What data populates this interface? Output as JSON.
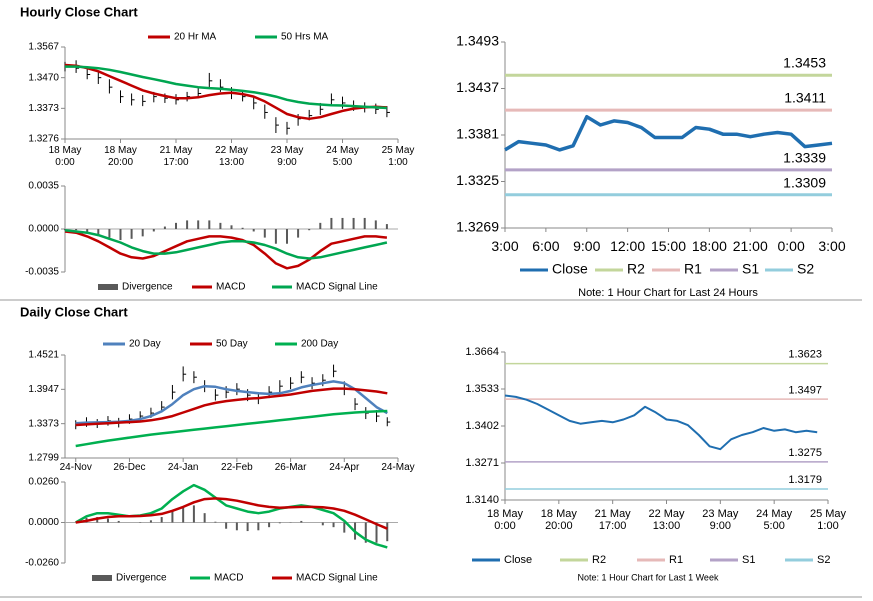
{
  "headings": [
    "Hourly Close Chart",
    "Daily Close Chart"
  ],
  "chart_data": [
    {
      "type": "hlc",
      "x": [
        0,
        1,
        2,
        3,
        4,
        5,
        6,
        7,
        8,
        9,
        10,
        11,
        12,
        13,
        14,
        15,
        16,
        17,
        18,
        19,
        20,
        21,
        22,
        23,
        24,
        25,
        26,
        27,
        28,
        29
      ],
      "high": [
        1.352,
        1.3525,
        1.35,
        1.349,
        1.3465,
        1.343,
        1.342,
        1.3415,
        1.3425,
        1.342,
        1.3418,
        1.3425,
        1.344,
        1.3485,
        1.3465,
        1.344,
        1.3425,
        1.341,
        1.3385,
        1.3345,
        1.333,
        1.3355,
        1.3368,
        1.339,
        1.342,
        1.341,
        1.3398,
        1.3392,
        1.3388,
        1.338
      ],
      "low": [
        1.349,
        1.3485,
        1.3465,
        1.345,
        1.342,
        1.339,
        1.3382,
        1.338,
        1.3392,
        1.339,
        1.3385,
        1.3395,
        1.3405,
        1.344,
        1.3425,
        1.3402,
        1.3395,
        1.337,
        1.334,
        1.3295,
        1.329,
        1.3318,
        1.3335,
        1.3352,
        1.338,
        1.3372,
        1.3365,
        1.336,
        1.3355,
        1.3345
      ],
      "close": [
        1.3505,
        1.35,
        1.348,
        1.347,
        1.344,
        1.341,
        1.34,
        1.3395,
        1.341,
        1.3405,
        1.34,
        1.341,
        1.342,
        1.346,
        1.344,
        1.342,
        1.341,
        1.339,
        1.336,
        1.332,
        1.331,
        1.334,
        1.335,
        1.337,
        1.34,
        1.339,
        1.338,
        1.3375,
        1.337,
        1.336
      ],
      "series": [
        {
          "name": "20 Hr MA",
          "color": "#c00000",
          "values": [
            1.351,
            1.3508,
            1.35,
            1.349,
            1.3475,
            1.346,
            1.3445,
            1.343,
            1.342,
            1.3412,
            1.3405,
            1.3405,
            1.3408,
            1.3415,
            1.342,
            1.3422,
            1.3418,
            1.341,
            1.3395,
            1.3375,
            1.3355,
            1.3345,
            1.334,
            1.3345,
            1.3355,
            1.3365,
            1.3372,
            1.3376,
            1.3378,
            1.3376
          ]
        },
        {
          "name": "50 Hrs MA",
          "color": "#00a651",
          "values": [
            1.3505,
            1.3505,
            1.3503,
            1.35,
            1.3495,
            1.3488,
            1.348,
            1.3472,
            1.3465,
            1.3458,
            1.345,
            1.3445,
            1.344,
            1.3437,
            1.3435,
            1.3432,
            1.3428,
            1.3424,
            1.3418,
            1.341,
            1.34,
            1.3393,
            1.3388,
            1.3385,
            1.3383,
            1.3382,
            1.338,
            1.3378,
            1.3376,
            1.3374
          ]
        }
      ],
      "xlim": [
        0,
        30
      ],
      "xticks": [
        {
          "value": 0,
          "label": "18 May 0:00"
        },
        {
          "value": 5,
          "label": "18 May 20:00"
        },
        {
          "value": 10,
          "label": "21 May 17:00"
        },
        {
          "value": 15,
          "label": "22 May 13:00"
        },
        {
          "value": 20,
          "label": "23 May 9:00"
        },
        {
          "value": 25,
          "label": "24 May 5:00"
        },
        {
          "value": 30,
          "label": "25 May 1:00"
        }
      ],
      "ylim": [
        1.3276,
        1.3567
      ],
      "yticks": [
        1.3567,
        {
          "value": 1.347,
          "label": "1.3470"
        },
        1.3373,
        1.3276
      ]
    },
    {
      "type": "macd",
      "x": [
        0,
        1,
        2,
        3,
        4,
        5,
        6,
        7,
        8,
        9,
        10,
        11,
        12,
        13,
        14,
        15,
        16,
        17,
        18,
        19,
        20,
        21,
        22,
        23,
        24,
        25,
        26,
        27,
        28,
        29
      ],
      "series": [
        {
          "name": "Divergence",
          "color": "#595959",
          "style": "bar",
          "values": [
            -0.0001,
            -0.0001,
            -0.0003,
            -0.0005,
            -0.0007,
            -0.0009,
            -0.0008,
            -0.0006,
            -0.0002,
            0.0002,
            0.0005,
            0.0007,
            0.0007,
            0.0007,
            0.0005,
            0.0003,
            0.0001,
            -0.0002,
            -0.0007,
            -0.0012,
            -0.0012,
            -0.0007,
            -0.0001,
            0.0005,
            0.0009,
            0.0009,
            0.0009,
            0.0009,
            0.0007,
            0.0004
          ]
        },
        {
          "name": "MACD",
          "color": "#c00000",
          "values": [
            -0.0002,
            -0.0003,
            -0.0006,
            -0.001,
            -0.0015,
            -0.002,
            -0.0023,
            -0.0024,
            -0.0022,
            -0.0018,
            -0.0014,
            -0.001,
            -0.0008,
            -0.0006,
            -0.0006,
            -0.0007,
            -0.0009,
            -0.0013,
            -0.002,
            -0.0028,
            -0.0032,
            -0.003,
            -0.0025,
            -0.0018,
            -0.0012,
            -0.001,
            -0.0008,
            -0.0006,
            -0.0006,
            -0.0007
          ]
        },
        {
          "name": "MACD Signal Line",
          "color": "#00a651",
          "values": [
            -0.0001,
            -0.0002,
            -0.0003,
            -0.0005,
            -0.0008,
            -0.0011,
            -0.0015,
            -0.0018,
            -0.002,
            -0.002,
            -0.0019,
            -0.0017,
            -0.0015,
            -0.0013,
            -0.0011,
            -0.001,
            -0.001,
            -0.0011,
            -0.0013,
            -0.0016,
            -0.002,
            -0.0023,
            -0.0024,
            -0.0023,
            -0.0021,
            -0.0019,
            -0.0017,
            -0.0015,
            -0.0013,
            -0.0011
          ]
        }
      ],
      "xlim": [
        0,
        30
      ],
      "ylim": [
        -0.0035,
        0.0035
      ],
      "yticks": [
        0.0035,
        {
          "value": 0,
          "label": "0.0000"
        },
        -0.0035
      ]
    },
    {
      "type": "levels",
      "x": [
        0,
        1,
        2,
        3,
        4,
        5,
        6,
        7,
        8,
        9,
        10,
        11,
        12,
        13,
        14,
        15,
        16,
        17,
        18,
        19,
        20,
        21,
        22,
        23,
        24
      ],
      "series": [
        {
          "name": "Close",
          "color": "#1f6eb0",
          "values": [
            1.3363,
            1.3373,
            1.3371,
            1.3369,
            1.3363,
            1.3368,
            1.3403,
            1.3393,
            1.3398,
            1.3396,
            1.339,
            1.3378,
            1.3378,
            1.3378,
            1.339,
            1.3388,
            1.3382,
            1.3382,
            1.3379,
            1.3382,
            1.3384,
            1.3382,
            1.3367,
            1.3369,
            1.3371
          ]
        }
      ],
      "levels": [
        {
          "name": "R2",
          "value": 1.3453,
          "color": "#c3d69b"
        },
        {
          "name": "R1",
          "value": 1.3411,
          "color": "#e6b9b8"
        },
        {
          "name": "S1",
          "value": 1.3339,
          "color": "#b3a2c7"
        },
        {
          "name": "S2",
          "value": 1.3309,
          "color": "#93cddd"
        }
      ],
      "note": "Note: 1 Hour Chart for Last 24 Hours",
      "xlim": [
        0,
        24
      ],
      "xticks": [
        {
          "value": 0,
          "label": "3:00"
        },
        {
          "value": 3,
          "label": "6:00"
        },
        {
          "value": 6,
          "label": "9:00"
        },
        {
          "value": 9,
          "label": "12:00"
        },
        {
          "value": 12,
          "label": "15:00"
        },
        {
          "value": 15,
          "label": "18:00"
        },
        {
          "value": 18,
          "label": "21:00"
        },
        {
          "value": 21,
          "label": "0:00"
        },
        {
          "value": 24,
          "label": "3:00"
        }
      ],
      "ylim": [
        1.3269,
        1.3493
      ],
      "yticks": [
        1.3493,
        1.3437,
        1.3381,
        1.3325,
        1.3269
      ]
    },
    {
      "type": "hlc",
      "x": [
        0,
        1,
        2,
        3,
        4,
        5,
        6,
        7,
        8,
        9,
        10,
        11,
        12,
        13,
        14,
        15,
        16,
        17,
        18,
        19,
        20,
        21,
        22,
        23,
        24,
        25,
        26,
        27,
        28,
        29
      ],
      "high": [
        1.343,
        1.348,
        1.345,
        1.35,
        1.347,
        1.353,
        1.358,
        1.364,
        1.375,
        1.402,
        1.433,
        1.425,
        1.41,
        1.395,
        1.4,
        1.405,
        1.395,
        1.39,
        1.4,
        1.41,
        1.415,
        1.425,
        1.415,
        1.42,
        1.436,
        1.408,
        1.38,
        1.365,
        1.36,
        1.348
      ],
      "low": [
        1.328,
        1.332,
        1.33,
        1.334,
        1.331,
        1.337,
        1.342,
        1.347,
        1.356,
        1.378,
        1.408,
        1.405,
        1.39,
        1.376,
        1.38,
        1.385,
        1.375,
        1.37,
        1.38,
        1.39,
        1.395,
        1.405,
        1.395,
        1.4,
        1.415,
        1.385,
        1.36,
        1.345,
        1.34,
        1.333
      ],
      "close": [
        1.335,
        1.34,
        1.338,
        1.342,
        1.339,
        1.345,
        1.35,
        1.355,
        1.365,
        1.39,
        1.42,
        1.415,
        1.4,
        1.385,
        1.39,
        1.395,
        1.385,
        1.38,
        1.39,
        1.4,
        1.405,
        1.415,
        1.405,
        1.41,
        1.425,
        1.395,
        1.37,
        1.355,
        1.35,
        1.34
      ],
      "series": [
        {
          "name": "20 Day",
          "color": "#4f81bd",
          "values": [
            1.338,
            1.339,
            1.3395,
            1.34,
            1.3405,
            1.342,
            1.345,
            1.35,
            1.358,
            1.37,
            1.385,
            1.395,
            1.4,
            1.399,
            1.395,
            1.392,
            1.39,
            1.388,
            1.387,
            1.388,
            1.392,
            1.398,
            1.402,
            1.405,
            1.408,
            1.405,
            1.395,
            1.38,
            1.365,
            1.355
          ]
        },
        {
          "name": "50 Day",
          "color": "#c00000",
          "values": [
            1.335,
            1.336,
            1.337,
            1.338,
            1.339,
            1.34,
            1.341,
            1.343,
            1.346,
            1.35,
            1.356,
            1.362,
            1.368,
            1.372,
            1.375,
            1.377,
            1.379,
            1.38,
            1.382,
            1.384,
            1.386,
            1.389,
            1.392,
            1.394,
            1.396,
            1.396,
            1.395,
            1.393,
            1.391,
            1.388
          ]
        },
        {
          "name": "200 Day",
          "color": "#00b050",
          "values": [
            1.3,
            1.303,
            1.306,
            1.309,
            1.3115,
            1.314,
            1.3165,
            1.319,
            1.321,
            1.323,
            1.325,
            1.327,
            1.329,
            1.331,
            1.333,
            1.335,
            1.337,
            1.339,
            1.341,
            1.343,
            1.345,
            1.347,
            1.349,
            1.351,
            1.353,
            1.3545,
            1.356,
            1.357,
            1.3578,
            1.3585
          ]
        }
      ],
      "xlim": [
        -1,
        30
      ],
      "xticks": [
        {
          "value": 0,
          "label": "24-Nov"
        },
        {
          "value": 5,
          "label": "26-Dec"
        },
        {
          "value": 10,
          "label": "24-Jan"
        },
        {
          "value": 15,
          "label": "22-Feb"
        },
        {
          "value": 20,
          "label": "26-Mar"
        },
        {
          "value": 25,
          "label": "24-Apr"
        },
        {
          "value": 30,
          "label": "24-May"
        }
      ],
      "ylim": [
        1.2799,
        1.4521
      ],
      "yticks": [
        1.4521,
        1.3947,
        1.3373,
        1.2799
      ]
    },
    {
      "type": "macd",
      "x": [
        0,
        1,
        2,
        3,
        4,
        5,
        6,
        7,
        8,
        9,
        10,
        11,
        12,
        13,
        14,
        15,
        16,
        17,
        18,
        19,
        20,
        21,
        22,
        23,
        24,
        25,
        26,
        27,
        28,
        29
      ],
      "series": [
        {
          "name": "Divergence",
          "color": "#595959",
          "style": "bar",
          "values": [
            0,
            0.003,
            0.0035,
            0.0025,
            0.001,
            0,
            0.0003,
            0.0014,
            0.0035,
            0.0075,
            0.01,
            0.011,
            0.006,
            0.0005,
            -0.004,
            -0.005,
            -0.0055,
            -0.005,
            -0.003,
            -0.0005,
            0.0002,
            0.001,
            0,
            -0.0018,
            -0.003,
            -0.0065,
            -0.011,
            -0.013,
            -0.013,
            -0.012
          ]
        },
        {
          "name": "MACD",
          "color": "#00b050",
          "values": [
            0,
            0.004,
            0.006,
            0.006,
            0.005,
            0.004,
            0.0045,
            0.006,
            0.009,
            0.015,
            0.02,
            0.024,
            0.021,
            0.016,
            0.011,
            0.009,
            0.007,
            0.006,
            0.007,
            0.009,
            0.01,
            0.011,
            0.01,
            0.008,
            0.006,
            0.001,
            -0.006,
            -0.011,
            -0.014,
            -0.016
          ]
        },
        {
          "name": "MACD Signal Line",
          "color": "#c00000",
          "values": [
            0,
            0.001,
            0.0025,
            0.0035,
            0.004,
            0.004,
            0.0042,
            0.0046,
            0.0055,
            0.0075,
            0.01,
            0.013,
            0.015,
            0.0155,
            0.015,
            0.014,
            0.0125,
            0.011,
            0.01,
            0.0095,
            0.0098,
            0.01,
            0.01,
            0.0098,
            0.009,
            0.0075,
            0.005,
            0.002,
            -0.001,
            -0.004
          ]
        }
      ],
      "xlim": [
        -1,
        30
      ],
      "ylim": [
        -0.026,
        0.026
      ],
      "yticks": [
        {
          "value": 0.026,
          "label": "0.0260"
        },
        {
          "value": 0,
          "label": "0.0000"
        },
        {
          "value": -0.026,
          "label": "-0.0260"
        }
      ]
    },
    {
      "type": "levels",
      "x": [
        0,
        1,
        2,
        3,
        4,
        5,
        6,
        7,
        8,
        9,
        10,
        11,
        12,
        13,
        14,
        15,
        16,
        17,
        18,
        19,
        20,
        21,
        22,
        23,
        24,
        25,
        26,
        27,
        28,
        29
      ],
      "series": [
        {
          "name": "Close",
          "color": "#1f6eb0",
          "values": [
            1.351,
            1.3505,
            1.3495,
            1.348,
            1.346,
            1.344,
            1.342,
            1.341,
            1.3415,
            1.342,
            1.3415,
            1.3425,
            1.344,
            1.347,
            1.345,
            1.3425,
            1.342,
            1.3405,
            1.337,
            1.333,
            1.332,
            1.3355,
            1.337,
            1.338,
            1.3395,
            1.3385,
            1.339,
            1.338,
            1.3385,
            1.338
          ]
        }
      ],
      "levels": [
        {
          "name": "R2",
          "value": 1.3623,
          "color": "#c3d69b"
        },
        {
          "name": "R1",
          "value": 1.3497,
          "color": "#e6b9b8"
        },
        {
          "name": "S1",
          "value": 1.3275,
          "color": "#b3a2c7"
        },
        {
          "name": "S2",
          "value": 1.3179,
          "color": "#93cddd"
        }
      ],
      "note": "Note: 1 Hour Chart for Last 1 Week",
      "xlim": [
        0,
        30
      ],
      "xticks": [
        {
          "value": 0,
          "label": "18 May 0:00"
        },
        {
          "value": 5,
          "label": "18 May 20:00"
        },
        {
          "value": 10,
          "label": "21 May 17:00"
        },
        {
          "value": 15,
          "label": "22 May 13:00"
        },
        {
          "value": 20,
          "label": "23 May 9:00"
        },
        {
          "value": 25,
          "label": "24 May 5:00"
        },
        {
          "value": 30,
          "label": "25 May 1:00"
        }
      ],
      "ylim": [
        1.314,
        1.3664
      ],
      "yticks": [
        1.3664,
        1.3533,
        1.3402,
        1.3271,
        {
          "value": 1.314,
          "label": "1.3140"
        }
      ]
    }
  ]
}
